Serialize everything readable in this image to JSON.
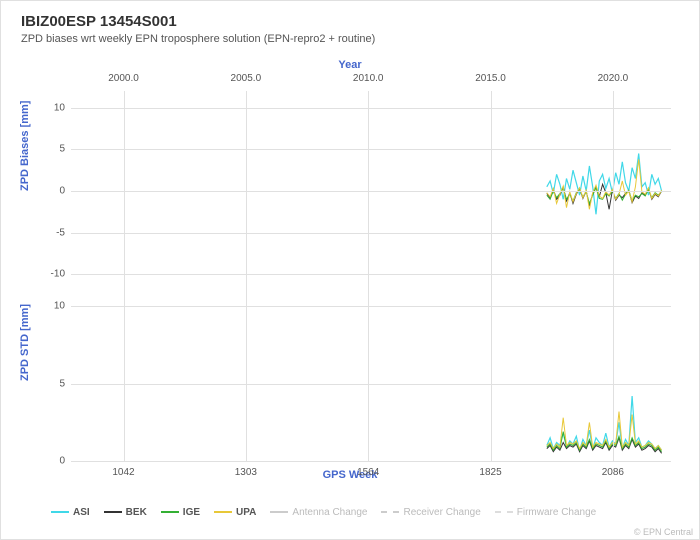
{
  "title": "IBIZ00ESP 13454S001",
  "subtitle": "ZPD biases wrt weekly EPN troposphere solution (EPN-repro2 + routine)",
  "top_axis": {
    "title": "Year",
    "ticks": [
      "2000.0",
      "2005.0",
      "2010.0",
      "2015.0",
      "2020.0"
    ]
  },
  "bottom_axis": {
    "title": "GPS Week",
    "ticks": [
      "1042",
      "1303",
      "1564",
      "1825",
      "2086"
    ]
  },
  "x_domain": {
    "min": 930,
    "max": 2210
  },
  "panel1": {
    "ylabel": "ZPD Biases [mm]",
    "ylim": [
      -12,
      12
    ],
    "yticks": [
      -10,
      -5,
      0,
      5,
      10
    ]
  },
  "panel2": {
    "ylabel": "ZPD STD [mm]",
    "ylim": [
      0,
      11
    ],
    "yticks": [
      0,
      5,
      10
    ]
  },
  "series": [
    {
      "id": "ASI",
      "label": "ASI",
      "color": "#40d8e8",
      "width": 1.2,
      "dash": "none",
      "biases": [
        0.5,
        1.2,
        -0.3,
        2.0,
        0.8,
        -1.0,
        1.5,
        0.2,
        2.5,
        1.0,
        -0.5,
        1.8,
        0.0,
        3.0,
        0.5,
        -2.8,
        1.2,
        2.0,
        0.3,
        1.5,
        -0.2,
        2.2,
        0.8,
        3.5,
        1.0,
        0.0,
        2.8,
        1.5,
        4.5,
        0.5,
        1.0,
        -0.5,
        2.0,
        0.8,
        1.5,
        0.0
      ],
      "std": [
        1.0,
        1.5,
        0.8,
        1.2,
        1.0,
        1.8,
        0.9,
        1.3,
        1.1,
        1.6,
        0.7,
        1.4,
        1.0,
        2.0,
        0.8,
        1.5,
        1.2,
        1.0,
        1.8,
        0.9,
        1.3,
        1.1,
        2.5,
        0.8,
        1.4,
        1.0,
        4.2,
        1.2,
        1.5,
        0.9,
        1.0,
        1.3,
        1.1,
        0.8,
        1.0,
        0.7
      ]
    },
    {
      "id": "BEK",
      "label": "BEK",
      "color": "#333333",
      "width": 1.0,
      "dash": "none",
      "biases": [
        -0.3,
        -0.8,
        0.2,
        -1.0,
        -0.5,
        0.5,
        -1.2,
        -0.2,
        -1.5,
        -0.4,
        0.3,
        -0.9,
        0.0,
        -1.8,
        -0.3,
        0.6,
        -0.7,
        0.8,
        -0.2,
        -2.2,
        0.1,
        -1.1,
        -0.5,
        -0.8,
        -0.3,
        0.0,
        -1.4,
        -0.6,
        -0.9,
        -0.2,
        -0.5,
        0.3,
        -1.0,
        -0.4,
        -0.7,
        0.0
      ],
      "std": [
        0.8,
        1.0,
        0.6,
        0.9,
        0.7,
        1.2,
        0.8,
        1.0,
        0.9,
        1.1,
        0.6,
        1.0,
        0.8,
        1.3,
        0.7,
        1.0,
        0.9,
        0.8,
        1.2,
        0.7,
        1.0,
        0.9,
        1.5,
        0.7,
        1.0,
        0.8,
        1.4,
        0.9,
        1.1,
        0.7,
        0.8,
        1.0,
        0.9,
        0.6,
        0.8,
        0.5
      ]
    },
    {
      "id": "IGE",
      "label": "IGE",
      "color": "#33b033",
      "width": 1.0,
      "dash": "none",
      "biases": [
        -0.5,
        -1.0,
        0.0,
        -0.8,
        -0.3,
        0.3,
        -1.0,
        -0.4,
        -1.2,
        -0.2,
        0.2,
        -0.7,
        -0.1,
        -1.5,
        -0.5,
        0.4,
        -0.9,
        -1.0,
        -0.3,
        -0.6,
        0.0,
        -0.9,
        -0.3,
        -1.1,
        -0.4,
        0.1,
        -1.2,
        -0.5,
        -0.7,
        -0.3,
        -0.6,
        0.2,
        -0.8,
        -0.2,
        -0.5,
        0.0
      ],
      "std": [
        0.9,
        1.1,
        0.7,
        1.0,
        0.8,
        1.9,
        0.9,
        1.1,
        1.0,
        1.2,
        0.7,
        1.1,
        0.9,
        1.4,
        0.8,
        1.1,
        1.0,
        0.9,
        1.3,
        0.8,
        1.1,
        1.0,
        1.6,
        0.8,
        1.1,
        0.9,
        1.5,
        1.0,
        1.2,
        0.8,
        0.9,
        1.1,
        1.0,
        0.7,
        0.9,
        0.6
      ]
    },
    {
      "id": "UPA",
      "label": "UPA",
      "color": "#e8c838",
      "width": 1.0,
      "dash": "none",
      "biases": [
        -0.2,
        -0.7,
        0.3,
        -1.5,
        -0.4,
        0.6,
        -2.0,
        -0.1,
        -1.3,
        -0.3,
        0.4,
        -0.8,
        0.1,
        -2.2,
        -0.2,
        0.7,
        -0.6,
        -0.9,
        -0.1,
        -0.5,
        0.2,
        -1.0,
        -0.4,
        1.2,
        -0.5,
        0.0,
        -1.3,
        0.5,
        3.8,
        -0.1,
        -0.4,
        0.4,
        -0.9,
        -0.3,
        -0.6,
        0.1
      ],
      "std": [
        1.0,
        1.2,
        0.8,
        1.1,
        0.9,
        2.8,
        1.0,
        1.2,
        1.1,
        1.3,
        0.8,
        1.2,
        1.0,
        2.5,
        0.9,
        1.2,
        1.1,
        1.0,
        1.4,
        0.9,
        1.2,
        1.1,
        3.2,
        0.9,
        1.2,
        1.0,
        3.0,
        1.1,
        1.3,
        0.9,
        1.0,
        1.2,
        1.1,
        0.8,
        1.0,
        0.7
      ]
    }
  ],
  "data_xrange": {
    "start": 1945,
    "end": 2190
  },
  "legend_extra": [
    {
      "label": "Antenna Change",
      "color": "#cccccc",
      "dash": "none"
    },
    {
      "label": "Receiver Change",
      "color": "#cccccc",
      "dash": "4,3"
    },
    {
      "label": "Firmware Change",
      "color": "#dddddd",
      "dash": "2,2"
    }
  ],
  "credit": "© EPN Central",
  "colors": {
    "grid": "#e0e0e0",
    "axis": "#888888",
    "bg": "#ffffff"
  }
}
